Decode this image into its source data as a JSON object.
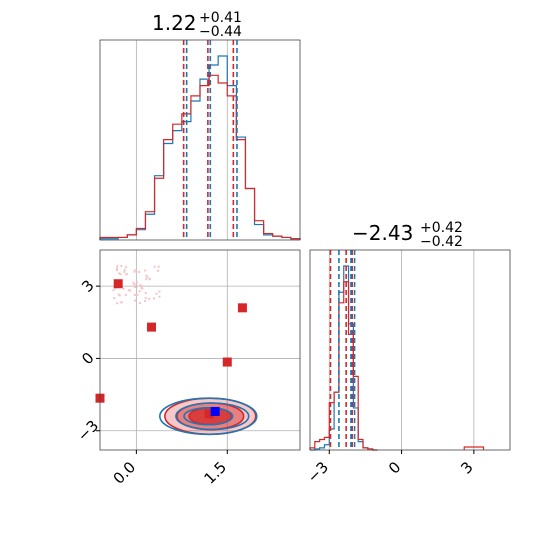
{
  "chart_data": {
    "type": "corner",
    "colors": {
      "red": "#d62728",
      "blue": "#1f77b4",
      "grid": "#b0b0b0"
    },
    "grid": true,
    "x_param": {
      "title": {
        "main": "1.22",
        "plus": "+0.41",
        "minus": "−0.44"
      },
      "median": 1.22,
      "lo": 0.78,
      "hi": 1.63,
      "blue_quantiles": [
        0.83,
        1.22,
        1.66
      ],
      "red_quantiles": [
        0.78,
        1.18,
        1.6
      ],
      "range": [
        -0.6,
        2.7
      ],
      "ticks": [
        {
          "value": 0.0,
          "label": "0.0"
        },
        {
          "value": 1.5,
          "label": "1.5"
        }
      ],
      "hist_bins": [
        -0.6,
        -0.45,
        -0.3,
        -0.15,
        0.0,
        0.15,
        0.3,
        0.45,
        0.6,
        0.75,
        0.9,
        1.05,
        1.2,
        1.35,
        1.5,
        1.65,
        1.8,
        1.95,
        2.1,
        2.25,
        2.4,
        2.55,
        2.7
      ],
      "hist_blue": [
        1,
        1,
        2,
        4,
        8,
        20,
        50,
        75,
        85,
        92,
        108,
        125,
        136,
        143,
        120,
        80,
        40,
        12,
        4,
        3,
        2,
        1
      ],
      "hist_red": [
        2,
        2,
        2,
        4,
        9,
        22,
        48,
        78,
        90,
        98,
        112,
        120,
        128,
        122,
        112,
        78,
        40,
        15,
        5,
        3,
        2,
        1
      ]
    },
    "y_param": {
      "title": {
        "main": "−2.43",
        "plus": "+0.42",
        "minus": "−0.42"
      },
      "median": -2.43,
      "lo": -2.85,
      "hi": -2.01,
      "blue_quantiles": [
        -2.6,
        -2.1,
        -1.95
      ],
      "red_quantiles": [
        -2.95,
        -2.3,
        -2.05
      ],
      "range": [
        -3.8,
        4.5
      ],
      "ticks": [
        {
          "value": -3,
          "label": "−3"
        },
        {
          "value": 0,
          "label": "0"
        },
        {
          "value": 3,
          "label": "3"
        }
      ],
      "hist_bins": [
        -3.8,
        -3.6,
        -3.4,
        -3.2,
        -3.0,
        -2.8,
        -2.6,
        -2.4,
        -2.2,
        -2.0,
        -1.8,
        -1.6,
        -1.4,
        -1.2,
        -1.0
      ],
      "hist_blue": [
        0,
        1,
        2,
        5,
        20,
        55,
        150,
        175,
        120,
        40,
        8,
        2,
        1,
        0
      ],
      "hist_red": [
        2,
        8,
        10,
        12,
        45,
        55,
        140,
        160,
        110,
        70,
        10,
        2,
        1,
        0
      ]
    },
    "scatter_points": [
      {
        "x": -0.3,
        "y": 3.1
      },
      {
        "x": 0.25,
        "y": 1.3
      },
      {
        "x": 1.75,
        "y": 2.1
      },
      {
        "x": 1.5,
        "y": -0.15
      },
      {
        "x": -0.6,
        "y": -1.65
      },
      {
        "x": 1.2,
        "y": -2.3
      }
    ],
    "truth_point": {
      "x": 1.3,
      "y": -2.2
    },
    "contours": [
      {
        "series": "red",
        "cx": 1.22,
        "cy": -2.4,
        "rx": [
          0.35,
          0.55,
          0.75
        ],
        "ry": [
          0.35,
          0.55,
          0.75
        ]
      },
      {
        "series": "blue",
        "cx": 1.22,
        "cy": -2.4,
        "rx": [
          0.4,
          0.6,
          0.8
        ],
        "ry": [
          0.35,
          0.55,
          0.75
        ]
      }
    ]
  }
}
